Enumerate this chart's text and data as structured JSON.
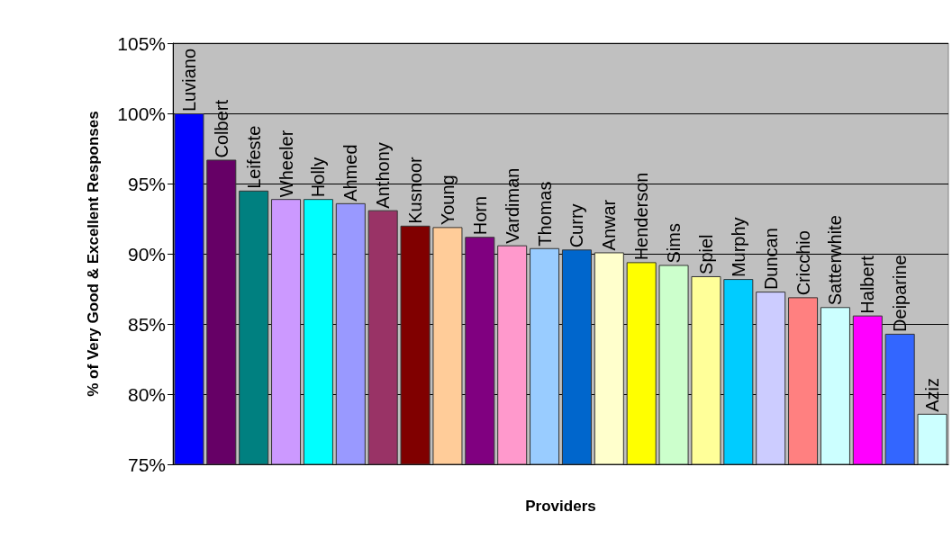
{
  "chart_data": {
    "type": "bar",
    "xlabel": "Providers",
    "ylabel": "% of Very Good & Excellent Responses",
    "categories": [
      "Luviano",
      "Colbert",
      "Leifeste",
      "Wheeler",
      "Holly",
      "Ahmed",
      "Anthony",
      "Kusnoor",
      "Young",
      "Horn",
      "Vardiman",
      "Thomas",
      "Curry",
      "Anwar",
      "Henderson",
      "Sims",
      "Spiel",
      "Murphy",
      "Duncan",
      "Cricchio",
      "Satterwhite",
      "Halbert",
      "Deiparine",
      "Aziz"
    ],
    "values": [
      100,
      96.7,
      94.5,
      93.9,
      93.9,
      93.6,
      93.1,
      92.0,
      91.9,
      91.2,
      90.6,
      90.4,
      90.3,
      90.1,
      89.4,
      89.2,
      88.4,
      88.2,
      87.3,
      86.9,
      86.2,
      85.6,
      84.3,
      78.6
    ],
    "colors": [
      "#0000ff",
      "#660066",
      "#008080",
      "#cc99ff",
      "#00ffff",
      "#9999ff",
      "#993366",
      "#800000",
      "#ffcc99",
      "#800080",
      "#ff99cc",
      "#99ccff",
      "#0066cc",
      "#ffffcc",
      "#ffff00",
      "#ccffcc",
      "#ffff99",
      "#00ccff",
      "#ccccff",
      "#ff8080",
      "#ccffff",
      "#ff00ff",
      "#3366ff",
      "#ccffff"
    ],
    "ylim": [
      75,
      105
    ],
    "yticks": [
      {
        "value": 75,
        "label": "75%"
      },
      {
        "value": 80,
        "label": "80%"
      },
      {
        "value": 85,
        "label": "85%"
      },
      {
        "value": 90,
        "label": "90%"
      },
      {
        "value": 95,
        "label": "95%"
      },
      {
        "value": 100,
        "label": "100%"
      },
      {
        "value": 105,
        "label": "105%"
      }
    ],
    "grid": "y",
    "tick_labels": "y"
  }
}
